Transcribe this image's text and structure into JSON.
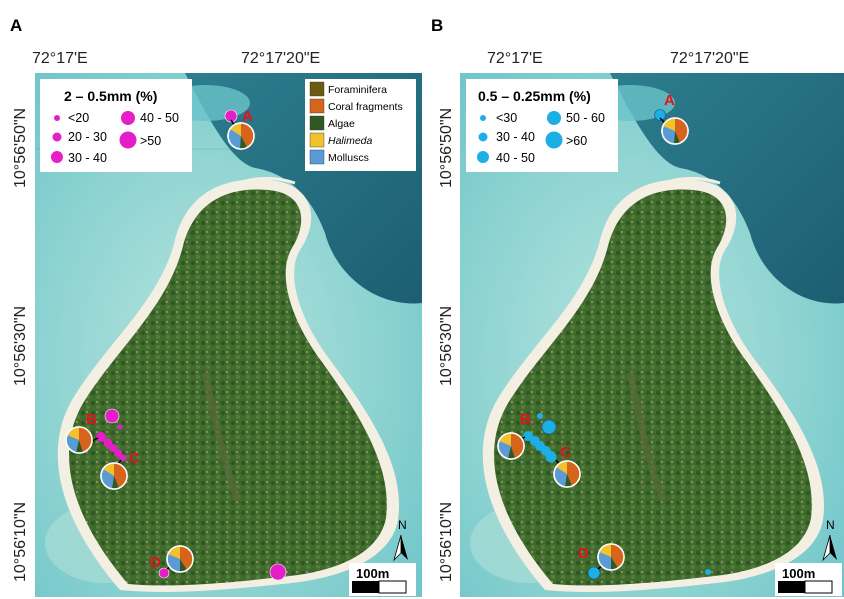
{
  "panels": {
    "a": {
      "letter": "A",
      "legend_title": "2 – 0.5mm (%)",
      "legend_items": [
        "<20",
        "20 - 30",
        "30 - 40",
        "40 - 50",
        ">50"
      ]
    },
    "b": {
      "letter": "B",
      "legend_title": "0.5 – 0.25mm (%)",
      "legend_items": [
        "<30",
        "30 - 40",
        "40 - 50",
        "50 - 60",
        ">60"
      ]
    }
  },
  "coordinates": {
    "lon_1": "72°17'E",
    "lon_2": "72°17'20\"E",
    "lat_1": "10°56'50\"N",
    "lat_2": "10°56'30\"N",
    "lat_3": "10°56'10\"N"
  },
  "composition_legend": [
    {
      "label": "Foraminifera",
      "color": "#6b5a12",
      "italic": false
    },
    {
      "label": "Coral fragments",
      "color": "#d6641a",
      "italic": false
    },
    {
      "label": "Algae",
      "color": "#2e5a22",
      "italic": false
    },
    {
      "label": "Halimeda",
      "color": "#f2c12e",
      "italic": true
    },
    {
      "label": "Molluscs",
      "color": "#5b9bd5",
      "italic": false
    }
  ],
  "sites": {
    "a": "A",
    "b": "B",
    "c": "C",
    "d": "D"
  },
  "scale_bar": "100m",
  "north": "N",
  "colors": {
    "panel_a_marker": "#e61ec8",
    "panel_b_marker": "#1eaee6",
    "site_label": "#e8101a"
  }
}
